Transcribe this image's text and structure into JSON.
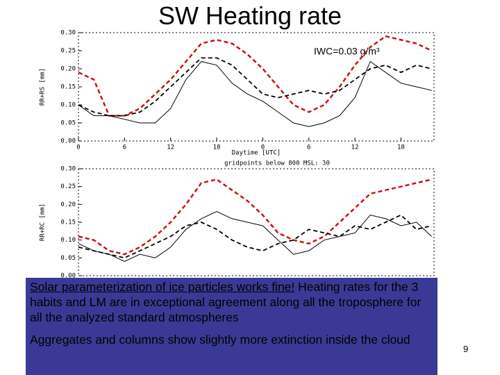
{
  "title": "SW Heating rate",
  "page_number": "9",
  "text_box": {
    "paragraphs": [
      {
        "underlined": "Solar parameterization of ice particles works fine!",
        "text": "Heating rates for the 3 habits and LM are in exceptional agreement along all the troposphere for all the analyzed standard atmospheres"
      },
      "Aggregates and columns show slightly more extinction inside the cloud"
    ]
  },
  "chart_data": [
    {
      "type": "line",
      "xlabel": "Daytime [UTC]",
      "ylabel": "RR+RS [mm]",
      "annotation": "IWC=0.03 g/m³",
      "x": [
        0,
        2,
        4,
        6,
        8,
        10,
        12,
        14,
        16,
        18,
        20,
        22,
        24,
        26,
        28,
        30,
        32,
        34,
        36,
        38,
        40,
        42,
        44,
        46
      ],
      "xlim": [
        0,
        46.3
      ],
      "xticks": [
        0,
        6,
        12,
        18,
        {
          "value": 24,
          "label": "0"
        },
        {
          "value": 30,
          "label": "6"
        },
        {
          "value": 36,
          "label": "12"
        },
        {
          "value": 42,
          "label": "18"
        }
      ],
      "ylim": [
        0,
        0.3
      ],
      "yticks": [
        {
          "value": 0,
          "label": "0.00"
        },
        {
          "value": 0.05,
          "label": "0.05"
        },
        {
          "value": 0.1,
          "label": "0.10"
        },
        {
          "value": 0.15,
          "label": "0.15"
        },
        {
          "value": 0.2,
          "label": "0.20"
        },
        {
          "value": 0.25,
          "label": "0.25"
        },
        {
          "value": 0.3,
          "label": "0.30"
        }
      ],
      "grid": false,
      "series": [
        {
          "color": "#cc1111",
          "dash": "dashed",
          "values": [
            0.19,
            0.17,
            0.07,
            0.07,
            0.09,
            0.13,
            0.17,
            0.22,
            0.27,
            0.28,
            0.27,
            0.24,
            0.2,
            0.15,
            0.1,
            0.08,
            0.1,
            0.15,
            0.21,
            0.26,
            0.29,
            0.28,
            0.27,
            0.25
          ]
        },
        {
          "color": "#000000",
          "dash": "dashed",
          "values": [
            0.1,
            0.08,
            0.07,
            0.07,
            0.08,
            0.11,
            0.15,
            0.19,
            0.23,
            0.23,
            0.21,
            0.17,
            0.13,
            0.12,
            0.13,
            0.14,
            0.13,
            0.14,
            0.17,
            0.2,
            0.21,
            0.19,
            0.21,
            0.2
          ]
        },
        {
          "color": "#000000",
          "dash": "solid",
          "values": [
            0.1,
            0.07,
            0.07,
            0.06,
            0.05,
            0.05,
            0.09,
            0.17,
            0.22,
            0.21,
            0.16,
            0.13,
            0.11,
            0.08,
            0.05,
            0.04,
            0.05,
            0.07,
            0.12,
            0.22,
            0.19,
            0.16,
            0.15,
            0.14
          ]
        }
      ]
    },
    {
      "type": "line",
      "title": "gridpoints below 800 MSL: 30",
      "ylabel": "RR+RC [mm]",
      "x": [
        0,
        2,
        4,
        6,
        8,
        10,
        12,
        14,
        16,
        18,
        20,
        22,
        24,
        26,
        28,
        30,
        32,
        34,
        36,
        38,
        40,
        42,
        44,
        46
      ],
      "xlim": [
        0,
        46.3
      ],
      "ylim": [
        0,
        0.3
      ],
      "yticks": [
        {
          "value": 0,
          "label": "0.00"
        },
        {
          "value": 0.05,
          "label": "0.05"
        },
        {
          "value": 0.1,
          "label": "0.10"
        },
        {
          "value": 0.15,
          "label": "0.15"
        },
        {
          "value": 0.2,
          "label": "0.20"
        },
        {
          "value": 0.25,
          "label": "0.25"
        },
        {
          "value": 0.3,
          "label": "0.30"
        }
      ],
      "grid": false,
      "series": [
        {
          "color": "#cc1111",
          "dash": "dashed",
          "values": [
            0.11,
            0.1,
            0.07,
            0.06,
            0.08,
            0.11,
            0.15,
            0.2,
            0.26,
            0.27,
            0.24,
            0.21,
            0.17,
            0.12,
            0.1,
            0.09,
            0.11,
            0.15,
            0.19,
            0.23,
            0.24,
            0.25,
            0.26,
            0.27
          ]
        },
        {
          "color": "#000000",
          "dash": "dashed",
          "values": [
            0.08,
            0.07,
            0.06,
            0.05,
            0.07,
            0.09,
            0.11,
            0.14,
            0.15,
            0.13,
            0.1,
            0.08,
            0.07,
            0.09,
            0.1,
            0.13,
            0.12,
            0.11,
            0.14,
            0.13,
            0.15,
            0.17,
            0.13,
            0.14
          ]
        },
        {
          "color": "#000000",
          "dash": "solid",
          "values": [
            0.09,
            0.07,
            0.06,
            0.04,
            0.06,
            0.05,
            0.08,
            0.13,
            0.16,
            0.18,
            0.16,
            0.15,
            0.14,
            0.1,
            0.06,
            0.07,
            0.1,
            0.11,
            0.12,
            0.17,
            0.16,
            0.14,
            0.15,
            0.11
          ]
        }
      ]
    }
  ]
}
